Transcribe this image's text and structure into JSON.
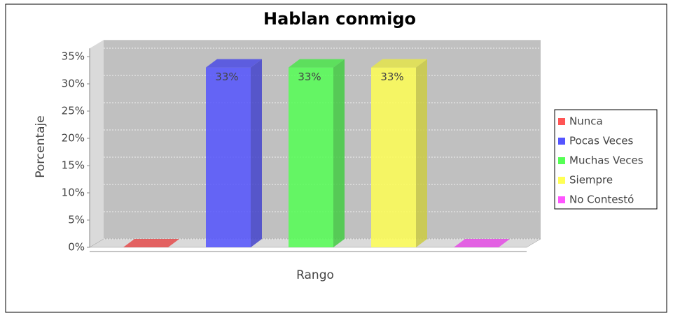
{
  "chart_data": {
    "type": "bar3d",
    "title": "Hablan conmigo",
    "x_label": "Rango",
    "y_label": "Porcentaje",
    "series": [
      {
        "name": "Nunca",
        "color": "#ff5555",
        "values": [
          0
        ]
      },
      {
        "name": "Pocas Veces",
        "color": "#5555ff",
        "values": [
          33
        ],
        "value_labels": [
          "33%"
        ]
      },
      {
        "name": "Muchas Veces",
        "color": "#55ff55",
        "values": [
          33
        ],
        "value_labels": [
          "33%"
        ]
      },
      {
        "name": "Siempre",
        "color": "#ffff55",
        "values": [
          33
        ],
        "value_labels": [
          "33%"
        ]
      },
      {
        "name": "No Contestó",
        "color": "#ff55ff",
        "values": [
          0
        ]
      }
    ],
    "ylim": [
      0,
      36.5
    ],
    "yticks": [
      {
        "value": 0,
        "label": "0%"
      },
      {
        "value": 5,
        "label": "5%"
      },
      {
        "value": 10,
        "label": "10%"
      },
      {
        "value": 15,
        "label": "15%"
      },
      {
        "value": 20,
        "label": "20%"
      },
      {
        "value": 25,
        "label": "25%"
      },
      {
        "value": 30,
        "label": "30%"
      },
      {
        "value": 35,
        "label": "35%"
      }
    ],
    "grid": true,
    "legend": "right"
  }
}
